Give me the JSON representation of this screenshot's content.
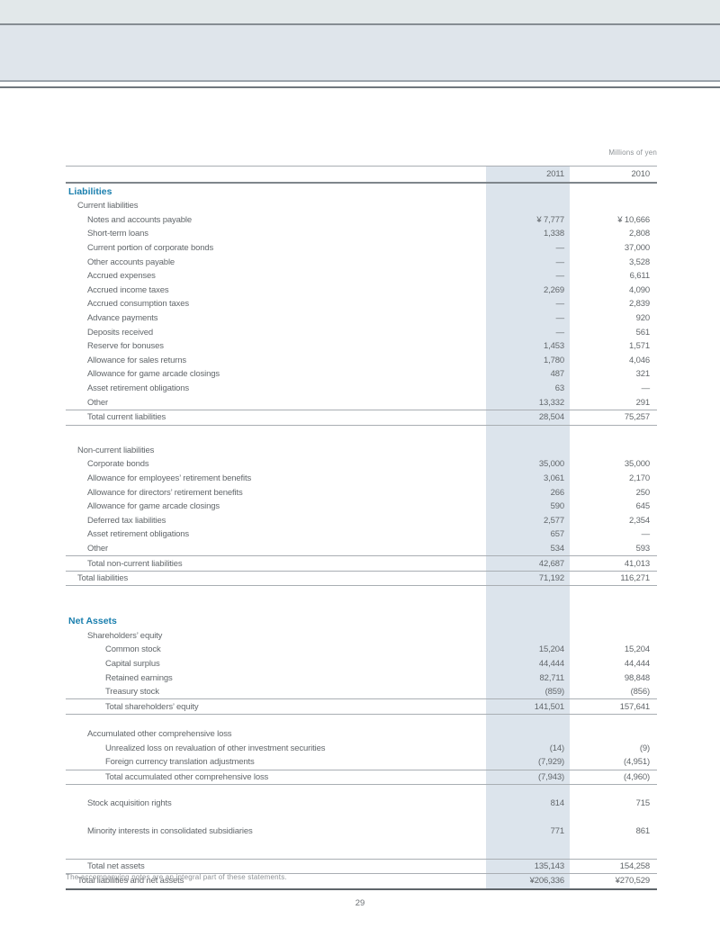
{
  "page": {
    "units_label": "Millions of yen",
    "footnote": "The accompanying notes are an integral part of these statements.",
    "page_number": "29"
  },
  "colors": {
    "highlight_column": "#dce4ec",
    "section_heading_blue": "#1a7fae",
    "band": "#dfe5eb"
  },
  "table": {
    "columns": [
      "2011",
      "2010"
    ],
    "rows": [
      {
        "label": "",
        "v1": "2011",
        "v2": "2010",
        "cls": "header rt rbd",
        "name": "column-header-row"
      },
      {
        "label": "Liabilities",
        "v1": "",
        "v2": "",
        "cls": "blue ind0",
        "name": "section-heading-liabilities"
      },
      {
        "label": "Current liabilities",
        "v1": "",
        "v2": "",
        "cls": "ind1",
        "name": "group-heading"
      },
      {
        "label": "Notes and accounts payable",
        "v1": "¥ 7,777",
        "v2": "¥ 10,666",
        "cls": "ind2",
        "name": "line-item"
      },
      {
        "label": "Short-term loans",
        "v1": "1,338",
        "v2": "2,808",
        "cls": "ind2",
        "name": "line-item"
      },
      {
        "label": "Current portion of corporate bonds",
        "v1": "—",
        "v2": "37,000",
        "cls": "ind2",
        "name": "line-item"
      },
      {
        "label": "Other accounts payable",
        "v1": "—",
        "v2": "3,528",
        "cls": "ind2",
        "name": "line-item"
      },
      {
        "label": "Accrued expenses",
        "v1": "—",
        "v2": "6,611",
        "cls": "ind2",
        "name": "line-item"
      },
      {
        "label": "Accrued income taxes",
        "v1": "2,269",
        "v2": "4,090",
        "cls": "ind2",
        "name": "line-item"
      },
      {
        "label": "Accrued consumption taxes",
        "v1": "—",
        "v2": "2,839",
        "cls": "ind2",
        "name": "line-item"
      },
      {
        "label": "Advance payments",
        "v1": "—",
        "v2": "920",
        "cls": "ind2",
        "name": "line-item"
      },
      {
        "label": "Deposits received",
        "v1": "—",
        "v2": "561",
        "cls": "ind2",
        "name": "line-item"
      },
      {
        "label": "Reserve for bonuses",
        "v1": "1,453",
        "v2": "1,571",
        "cls": "ind2",
        "name": "line-item"
      },
      {
        "label": "Allowance for sales returns",
        "v1": "1,780",
        "v2": "4,046",
        "cls": "ind2",
        "name": "line-item"
      },
      {
        "label": "Allowance for game arcade closings",
        "v1": "487",
        "v2": "321",
        "cls": "ind2",
        "name": "line-item"
      },
      {
        "label": "Asset retirement obligations",
        "v1": "63",
        "v2": "—",
        "cls": "ind2",
        "name": "line-item"
      },
      {
        "label": "Other",
        "v1": "13,332",
        "v2": "291",
        "cls": "ind2",
        "name": "line-item"
      },
      {
        "label": "Total current liabilities",
        "v1": "28,504",
        "v2": "75,257",
        "cls": "ind2 rt rb",
        "name": "total-row"
      },
      {
        "label": "",
        "v1": "",
        "v2": "",
        "cls": "spacer s20",
        "name": "spacer-row"
      },
      {
        "label": "Non-current liabilities",
        "v1": "",
        "v2": "",
        "cls": "ind1",
        "name": "group-heading"
      },
      {
        "label": "Corporate bonds",
        "v1": "35,000",
        "v2": "35,000",
        "cls": "ind2",
        "name": "line-item"
      },
      {
        "label": "Allowance for employees’ retirement benefits",
        "v1": "3,061",
        "v2": "2,170",
        "cls": "ind2",
        "name": "line-item"
      },
      {
        "label": "Allowance for directors’ retirement benefits",
        "v1": "266",
        "v2": "250",
        "cls": "ind2",
        "name": "line-item"
      },
      {
        "label": "Allowance for game arcade closings",
        "v1": "590",
        "v2": "645",
        "cls": "ind2",
        "name": "line-item"
      },
      {
        "label": "Deferred tax liabilities",
        "v1": "2,577",
        "v2": "2,354",
        "cls": "ind2",
        "name": "line-item"
      },
      {
        "label": "Asset retirement obligations",
        "v1": "657",
        "v2": "—",
        "cls": "ind2",
        "name": "line-item"
      },
      {
        "label": "Other",
        "v1": "534",
        "v2": "593",
        "cls": "ind2",
        "name": "line-item"
      },
      {
        "label": "Total non-current liabilities",
        "v1": "42,687",
        "v2": "41,013",
        "cls": "ind2 rt rb",
        "name": "total-row"
      },
      {
        "label": "Total liabilities",
        "v1": "71,192",
        "v2": "116,271",
        "cls": "ind1 rb",
        "name": "total-row"
      },
      {
        "label": "",
        "v1": "",
        "v2": "",
        "cls": "spacer s30",
        "name": "spacer-row"
      },
      {
        "label": "Net Assets",
        "v1": "",
        "v2": "",
        "cls": "blue ind0",
        "name": "section-heading-net-assets"
      },
      {
        "label": "Shareholders’ equity",
        "v1": "",
        "v2": "",
        "cls": "ind2",
        "name": "group-heading"
      },
      {
        "label": "Common stock",
        "v1": "15,204",
        "v2": "15,204",
        "cls": "ind3",
        "name": "line-item"
      },
      {
        "label": "Capital surplus",
        "v1": "44,444",
        "v2": "44,444",
        "cls": "ind3",
        "name": "line-item"
      },
      {
        "label": "Retained earnings",
        "v1": "82,711",
        "v2": "98,848",
        "cls": "ind3",
        "name": "line-item"
      },
      {
        "label": "Treasury stock",
        "v1": "(859)",
        "v2": "(856)",
        "cls": "ind3",
        "name": "line-item"
      },
      {
        "label": "Total shareholders’ equity",
        "v1": "141,501",
        "v2": "157,641",
        "cls": "ind3 rt rb",
        "name": "total-row"
      },
      {
        "label": "",
        "v1": "",
        "v2": "",
        "cls": "spacer s14",
        "name": "spacer-row"
      },
      {
        "label": "Accumulated other comprehensive loss",
        "v1": "",
        "v2": "",
        "cls": "ind2",
        "name": "group-heading"
      },
      {
        "label": "Unrealized loss on revaluation of other investment securities",
        "v1": "(14)",
        "v2": "(9)",
        "cls": "ind3",
        "name": "line-item"
      },
      {
        "label": "Foreign currency translation adjustments",
        "v1": "(7,929)",
        "v2": "(4,951)",
        "cls": "ind3",
        "name": "line-item"
      },
      {
        "label": "Total accumulated other comprehensive loss",
        "v1": "(7,943)",
        "v2": "(4,960)",
        "cls": "ind3 rt rb",
        "name": "total-row"
      },
      {
        "label": "",
        "v1": "",
        "v2": "",
        "cls": "spacer s12",
        "name": "spacer-row"
      },
      {
        "label": "Stock acquisition rights",
        "v1": "814",
        "v2": "715",
        "cls": "ind2",
        "name": "line-item"
      },
      {
        "label": "",
        "v1": "",
        "v2": "",
        "cls": "spacer s16",
        "name": "spacer-row"
      },
      {
        "label": "Minority interests in consolidated subsidiaries",
        "v1": "771",
        "v2": "861",
        "cls": "ind2",
        "name": "line-item"
      },
      {
        "label": "",
        "v1": "",
        "v2": "",
        "cls": "spacer s22",
        "name": "spacer-row"
      },
      {
        "label": "Total net assets",
        "v1": "135,143",
        "v2": "154,258",
        "cls": "ind2 rt rb",
        "name": "total-row"
      },
      {
        "label": "Total liabilities and net assets",
        "v1": "¥206,336",
        "v2": "¥270,529",
        "cls": "ind1 rbk",
        "name": "grand-total-row"
      }
    ]
  }
}
